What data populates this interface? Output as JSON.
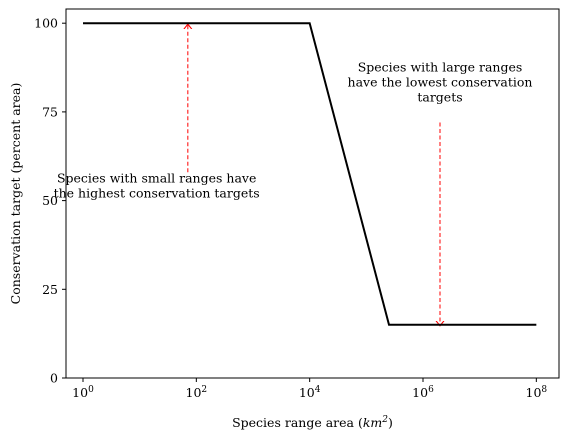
{
  "chart_data": {
    "type": "line",
    "xlabel_main": "Species range area (",
    "xlabel_unit": "km",
    "xlabel_unit_exp": "2",
    "xlabel_close": ")",
    "ylabel": "Conservation target (percent area)",
    "xscale": "log10",
    "xlim_log10": [
      -0.3,
      8.4
    ],
    "ylim": [
      0,
      104
    ],
    "x_ticks": [
      {
        "base": "10",
        "exp": "0",
        "log10": 0
      },
      {
        "base": "10",
        "exp": "2",
        "log10": 2
      },
      {
        "base": "10",
        "exp": "4",
        "log10": 4
      },
      {
        "base": "10",
        "exp": "6",
        "log10": 6
      },
      {
        "base": "10",
        "exp": "8",
        "log10": 8
      }
    ],
    "y_ticks": [
      {
        "label": "0",
        "value": 0
      },
      {
        "label": "25",
        "value": 25
      },
      {
        "label": "50",
        "value": 50
      },
      {
        "label": "75",
        "value": 75
      },
      {
        "label": "100",
        "value": 100
      }
    ],
    "series": [
      {
        "color": "#000000",
        "x_log10": [
          0,
          4,
          5.4,
          8
        ],
        "y": [
          100,
          100,
          15,
          15
        ]
      }
    ],
    "annotations": [
      {
        "lines": [
          "Species with small ranges have",
          "the highest conservation targets"
        ],
        "text_x_log10": 1.3,
        "text_y": 52,
        "arrow_x_log10": 1.85,
        "arrow_from_y": 58,
        "arrow_to_y": 100,
        "arrow_color": "#ff0000"
      },
      {
        "lines": [
          "Species with large ranges",
          "have the lowest conservation",
          "targets"
        ],
        "text_x_log10": 6.3,
        "text_y": 79,
        "arrow_x_log10": 6.3,
        "arrow_from_y": 72,
        "arrow_to_y": 15,
        "arrow_color": "#ff0000"
      }
    ]
  }
}
